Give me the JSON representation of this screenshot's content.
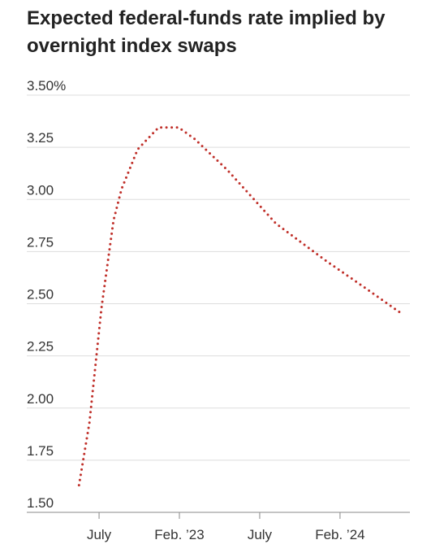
{
  "chart_data": {
    "type": "line",
    "title": [
      "Expected federal-funds rate implied by",
      "overnight index swaps"
    ],
    "x": [
      -0.25,
      -0.12,
      0.03,
      0.18,
      0.28,
      0.48,
      0.74,
      0.99,
      1.19,
      1.6,
      2.2,
      2.81,
      3.26,
      3.74
    ],
    "series": [
      {
        "color": "#c0302a",
        "values": [
          1.63,
          1.93,
          2.48,
          2.9,
          3.05,
          3.24,
          3.345,
          3.345,
          3.29,
          3.14,
          2.885,
          2.71,
          2.59,
          2.46
        ]
      }
    ],
    "xlim": [
      -0.9,
      3.87
    ],
    "xticks": [
      {
        "value": 0,
        "label": "July"
      },
      {
        "value": 1,
        "label": "Feb. ’23"
      },
      {
        "value": 2,
        "label": "July"
      },
      {
        "value": 3,
        "label": "Feb. ’24"
      }
    ],
    "ylim": [
      1.5,
      3.5
    ],
    "yticks": [
      {
        "value": 1.5,
        "label": "1.50"
      },
      1.75,
      {
        "value": 2,
        "label": "2.00"
      },
      2.25,
      {
        "value": 2.5,
        "label": "2.50"
      },
      2.75,
      {
        "value": 3,
        "label": "3.00"
      },
      3.25,
      {
        "value": 3.5,
        "label": "3.50%"
      }
    ],
    "grid": true
  }
}
